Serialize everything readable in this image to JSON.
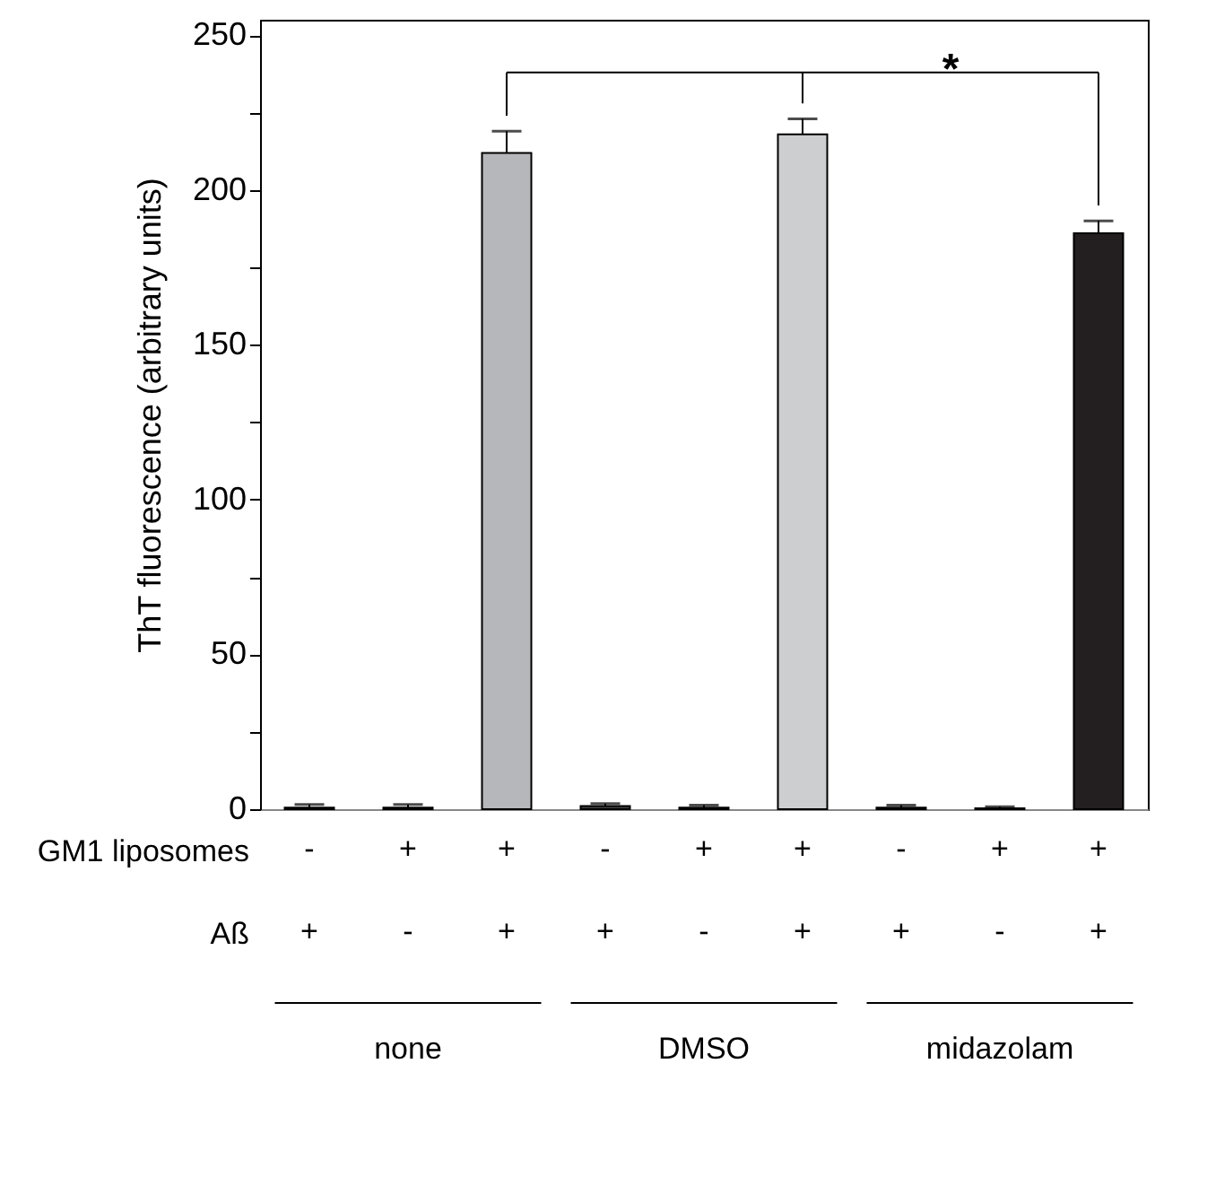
{
  "chart_data": {
    "type": "bar",
    "ylabel": "ThT fluorescence (arbitrary units)",
    "categories": [
      "-\n+",
      "+\n-",
      "+\n+",
      "-\n+",
      "+\n-",
      "+\n+",
      "-\n+",
      "+\n-",
      "+\n+"
    ],
    "values": [
      0.5,
      0.5,
      212,
      1,
      0.5,
      218,
      0.5,
      0.3,
      186
    ],
    "errors": [
      [
        0.5,
        1.5
      ],
      [
        0.5,
        1.5
      ],
      [
        212,
        219
      ],
      [
        1,
        1.8
      ],
      [
        0.5,
        1.3
      ],
      [
        218,
        223
      ],
      [
        0.5,
        1.3
      ],
      [
        0.3,
        0.8
      ],
      [
        186,
        190
      ]
    ],
    "colors": [
      "#404040",
      "#404040",
      "#b6b7bb",
      "#404040",
      "#404040",
      "#cdcecf",
      "#404040",
      "#404040",
      "#231f20"
    ],
    "ylim": [
      0,
      255
    ],
    "yticks": [
      0,
      {
        "value": 25,
        "label": null
      },
      50,
      {
        "value": 75,
        "label": null
      },
      100,
      {
        "value": 125,
        "label": null
      },
      150,
      {
        "value": 175,
        "label": null
      },
      200,
      {
        "value": 225,
        "label": null
      },
      250
    ],
    "grid": false,
    "annotations": [
      "GM1 liposomes",
      "Aß",
      "none",
      "DMSO",
      "midazolam",
      "*"
    ]
  }
}
